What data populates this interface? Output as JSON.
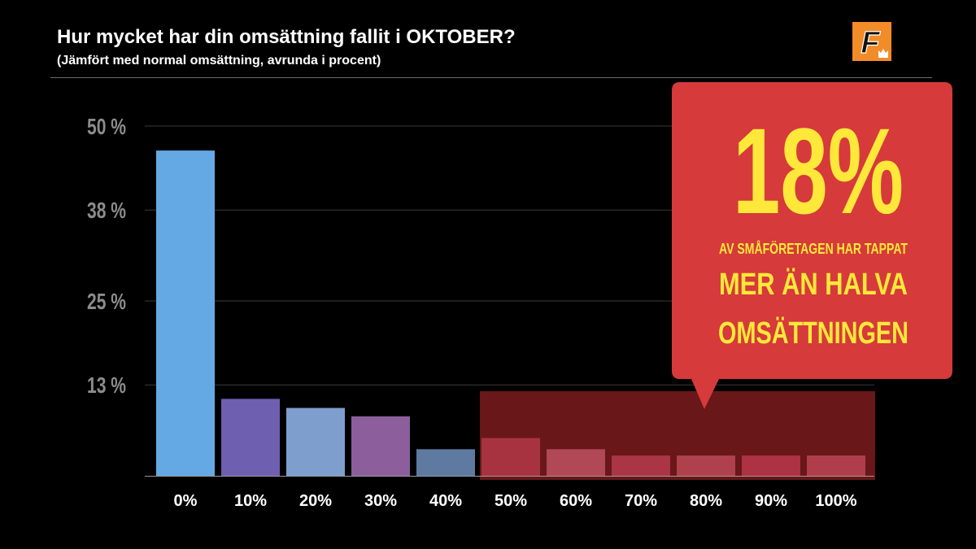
{
  "header": {
    "title": "Hur mycket har din omsättning fallit i OKTOBER?",
    "subtitle": "(Jämfört med normal omsättning, avrunda i procent)"
  },
  "logo": {
    "letter": "F",
    "icon": "crown-icon",
    "color": "#f28c28"
  },
  "callout": {
    "big_value": "18%",
    "line1": "AV SMÅFÖRETAGEN HAR TAPPAT",
    "line2": "MER ÄN HALVA",
    "line3": "OMSÄTTNINGEN",
    "background": "#d63a3a",
    "text_color": "#ffe83a"
  },
  "chart_data": {
    "type": "bar",
    "categories": [
      "0%",
      "10%",
      "20%",
      "30%",
      "40%",
      "50%",
      "60%",
      "70%",
      "80%",
      "90%",
      "100%"
    ],
    "values": [
      46.5,
      11,
      9.7,
      8.5,
      3.8,
      5.4,
      3.8,
      2.9,
      2.9,
      2.9,
      2.9
    ],
    "colors": [
      "#64a9e3",
      "#6f5fb0",
      "#7e9fce",
      "#8c5f9c",
      "#5e7aa0",
      "#8a3f5c",
      "#9f6e87",
      "#8e4365",
      "#9c5c76",
      "#963d63",
      "#9c5774"
    ],
    "yticks": [
      13,
      25,
      38,
      50
    ],
    "ytick_labels": [
      "13 %",
      "25 %",
      "38 %",
      "50 %"
    ],
    "ylim": [
      0,
      50
    ],
    "highlight": {
      "from": "50%",
      "to": "100%",
      "color": "#c0292c"
    },
    "grid": true
  }
}
